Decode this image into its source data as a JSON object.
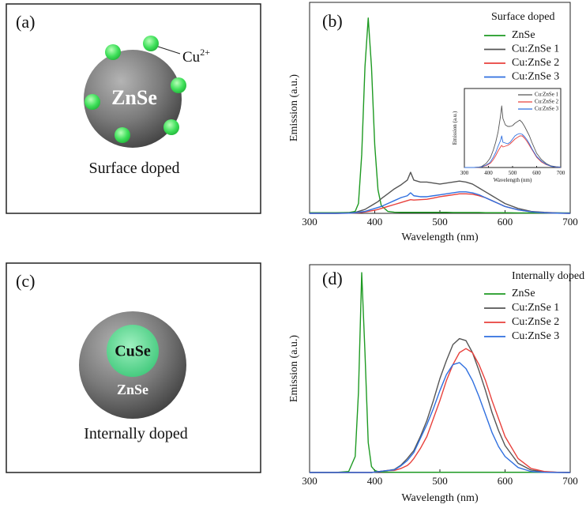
{
  "panels": [
    {
      "label": "(a)",
      "core": "ZnSe",
      "dopant": "Cu",
      "dopant_charge": "2+",
      "caption": "Surface doped"
    },
    {
      "label": "(c)",
      "core": "CuSe",
      "shell": "ZnSe",
      "caption": "Internally doped"
    }
  ],
  "chart_data": [
    {
      "type": "line",
      "panel_label": "(b)",
      "legend_title": "Surface doped",
      "legend": "upper right",
      "x_label": "Wavelength (nm)",
      "y_label": "Emission (a.u.)",
      "xlim": [
        300,
        700
      ],
      "xticks": [
        300,
        400,
        500,
        600,
        700
      ],
      "ylim": [
        0,
        108
      ],
      "grid": false,
      "x": [
        300,
        340,
        360,
        370,
        375,
        380,
        385,
        390,
        395,
        400,
        405,
        410,
        420,
        430,
        440,
        450,
        455,
        460,
        470,
        480,
        490,
        500,
        510,
        520,
        530,
        540,
        550,
        560,
        570,
        580,
        590,
        600,
        620,
        640,
        660,
        680,
        700
      ],
      "series": [
        {
          "name": "ZnSe",
          "color": "#1e9a22",
          "values": [
            0.3,
            0.3,
            0.4,
            1,
            5,
            30,
            75,
            100,
            75,
            35,
            12,
            4,
            1,
            0.6,
            0.5,
            0.5,
            0.5,
            0.5,
            0.5,
            0.5,
            0.5,
            0.5,
            0.5,
            0.4,
            0.4,
            0.4,
            0.4,
            0.4,
            0.3,
            0.3,
            0.3,
            0.3,
            0.2,
            0.2,
            0.2,
            0.2,
            0.2
          ]
        },
        {
          "name": "Cu:ZnSe 1",
          "color": "#555555",
          "values": [
            0,
            0,
            0.2,
            0.5,
            1,
            1.5,
            2,
            3,
            4,
            5,
            6,
            7.5,
            10,
            12.5,
            14.5,
            17,
            21,
            17,
            16,
            16,
            15.5,
            15,
            15.5,
            16,
            16.5,
            16,
            15,
            13,
            11,
            9,
            7,
            5,
            2.5,
            1,
            0.5,
            0.2,
            0
          ]
        },
        {
          "name": "Cu:ZnSe 2",
          "color": "#e8413c",
          "values": [
            0,
            0,
            0.1,
            0.2,
            0.3,
            0.5,
            0.7,
            1,
            1.3,
            1.6,
            2,
            2.5,
            3.5,
            4.5,
            5.5,
            6.5,
            7,
            6.8,
            7,
            7.2,
            7.8,
            8.5,
            9,
            9.5,
            10,
            10,
            9.8,
            9,
            8,
            6.5,
            5,
            3.5,
            1.8,
            0.8,
            0.3,
            0.1,
            0
          ]
        },
        {
          "name": "Cu:ZnSe 3",
          "color": "#2f6fdf",
          "values": [
            0,
            0,
            0.1,
            0.3,
            0.5,
            0.8,
            1,
            1.5,
            2,
            2.5,
            3,
            3.5,
            5,
            6.5,
            8,
            9,
            10.5,
            9,
            8.5,
            8.5,
            9,
            9.5,
            10,
            10.5,
            11,
            11,
            10.5,
            9.5,
            8,
            6.5,
            5,
            3.5,
            1.8,
            0.8,
            0.3,
            0.1,
            0
          ]
        }
      ]
    },
    {
      "type": "line",
      "legend": "upper right",
      "x_label": "Wavelength (nm)",
      "y_label": "Emission (a.u.)",
      "xlim": [
        300,
        700
      ],
      "xticks": [
        300,
        400,
        500,
        600,
        700
      ],
      "ylim": [
        0,
        100
      ],
      "grid": false,
      "x": [
        300,
        340,
        360,
        370,
        375,
        380,
        385,
        390,
        395,
        400,
        405,
        410,
        420,
        430,
        440,
        450,
        455,
        460,
        470,
        480,
        490,
        500,
        510,
        520,
        530,
        540,
        550,
        560,
        570,
        580,
        590,
        600,
        620,
        640,
        660,
        680,
        700
      ],
      "series": [
        {
          "name": "Cu:ZnSe 1",
          "color": "#555555",
          "values": [
            0,
            0,
            0.5,
            1,
            2,
            3,
            4,
            5,
            7,
            9,
            11,
            14,
            22,
            32,
            45,
            65,
            78,
            62,
            54,
            52,
            52,
            53,
            56,
            58,
            60,
            57,
            52,
            46,
            40,
            32,
            25,
            18,
            10,
            5,
            2,
            1,
            0.5
          ]
        },
        {
          "name": "Cu:ZnSe 2",
          "color": "#e8413c",
          "values": [
            0,
            0,
            0.2,
            0.5,
            1,
            1.5,
            2,
            2.5,
            3,
            4,
            5,
            6,
            10,
            15,
            21,
            26,
            28,
            26,
            27,
            28,
            30,
            33,
            36,
            38,
            40,
            40,
            37,
            33,
            28,
            23,
            18,
            13,
            7,
            3.5,
            1.5,
            0.6,
            0.2
          ]
        },
        {
          "name": "Cu:ZnSe 3",
          "color": "#2f6fdf",
          "values": [
            0,
            0,
            0.3,
            0.7,
            1.2,
            2,
            2.5,
            3,
            4,
            5,
            6,
            8,
            13,
            19,
            27,
            34,
            40,
            32,
            31,
            30,
            32,
            36,
            40,
            42,
            43,
            42,
            39,
            35,
            30,
            24,
            19,
            14,
            8,
            4,
            1.5,
            0.7,
            0.3
          ]
        }
      ]
    },
    {
      "type": "line",
      "panel_label": "(d)",
      "legend_title": "Internally doped",
      "legend": "upper right",
      "x_label": "Wavelength (nm)",
      "y_label": "Emission (a.u.)",
      "xlim": [
        300,
        700
      ],
      "xticks": [
        300,
        400,
        500,
        600,
        700
      ],
      "ylim": [
        0,
        104
      ],
      "grid": false,
      "x": [
        300,
        340,
        360,
        370,
        375,
        380,
        385,
        390,
        395,
        400,
        405,
        410,
        420,
        430,
        440,
        450,
        455,
        460,
        470,
        480,
        490,
        500,
        510,
        520,
        530,
        540,
        550,
        560,
        570,
        580,
        590,
        600,
        620,
        640,
        660,
        680,
        700
      ],
      "series": [
        {
          "name": "ZnSe",
          "color": "#1e9a22",
          "values": [
            0,
            0,
            0.5,
            8,
            40,
            100,
            60,
            15,
            3,
            1,
            0.5,
            0.3,
            0.2,
            0.1,
            0.1,
            0.1,
            0.1,
            0.1,
            0.1,
            0.1,
            0.1,
            0.1,
            0.1,
            0.1,
            0.1,
            0.1,
            0.1,
            0.1,
            0.1,
            0.1,
            0.1,
            0.1,
            0.1,
            0.1,
            0.1,
            0.1,
            0.1
          ]
        },
        {
          "name": "Cu:ZnSe 1",
          "color": "#555555",
          "values": [
            0,
            0,
            0,
            0,
            0,
            0,
            0,
            0,
            0,
            0.2,
            0.4,
            0.6,
            1,
            1.5,
            3.6,
            7,
            9,
            11,
            18,
            26,
            36,
            47,
            56,
            64,
            67,
            66,
            60,
            51,
            41,
            30,
            21,
            13.5,
            4.6,
            1.2,
            0.3,
            0.1,
            0
          ]
        },
        {
          "name": "Cu:ZnSe 2",
          "color": "#e8413c",
          "values": [
            0,
            0,
            0,
            0,
            0,
            0,
            0,
            0,
            0,
            0.2,
            0.4,
            0.6,
            1,
            1,
            2,
            3.5,
            5,
            7,
            12,
            18,
            27,
            36,
            46,
            54,
            60,
            62,
            60,
            54,
            46,
            36,
            27,
            18,
            7,
            2,
            0.5,
            0.1,
            0
          ]
        },
        {
          "name": "Cu:ZnSe 3",
          "color": "#2f6fdf",
          "values": [
            0,
            0,
            0,
            0,
            0,
            0,
            0,
            0,
            0,
            0.2,
            0.4,
            0.6,
            1,
            1.3,
            3.3,
            6,
            8,
            10,
            17,
            24,
            32,
            41,
            49,
            54,
            55,
            52,
            46,
            38,
            29,
            20,
            13,
            8,
            2.5,
            0.5,
            0.1,
            0,
            0
          ]
        }
      ]
    }
  ]
}
